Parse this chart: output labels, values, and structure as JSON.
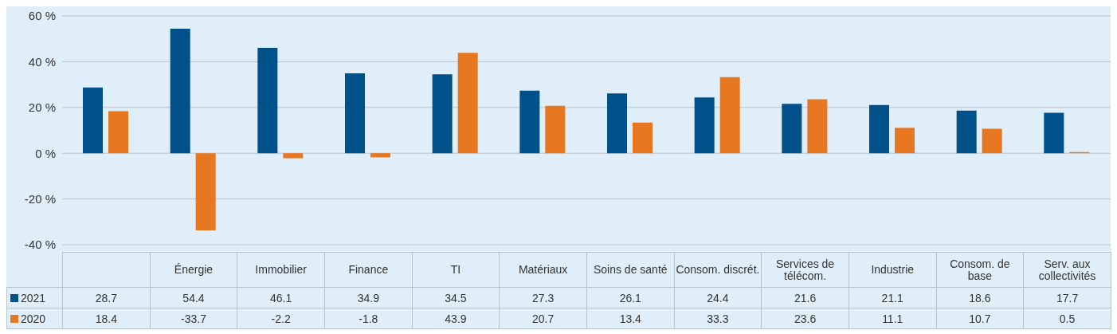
{
  "chart_data": {
    "type": "bar",
    "categories": [
      null,
      "Énergie",
      "Immobilier",
      "Finance",
      "TI",
      "Matériaux",
      "Soins de santé",
      "Consom. discrét.",
      "Services de télécom.",
      "Industrie",
      "Consom. de base",
      "Serv. aux collectivités"
    ],
    "series": [
      {
        "name": "2021",
        "color": "#00508a",
        "values": [
          28.7,
          54.4,
          46.1,
          34.9,
          34.5,
          27.3,
          26.1,
          24.4,
          21.6,
          21.1,
          18.6,
          17.7
        ]
      },
      {
        "name": "2020",
        "color": "#e87722",
        "values": [
          18.4,
          -33.7,
          -2.2,
          -1.8,
          43.9,
          20.7,
          13.4,
          33.3,
          23.6,
          11.1,
          10.7,
          0.5
        ]
      }
    ],
    "ylim": [
      -40,
      60
    ],
    "yticks": [
      {
        "value": -40,
        "label": "-40 %"
      },
      {
        "value": -20,
        "label": "-20 %"
      },
      {
        "value": 0,
        "label": "0 %"
      },
      {
        "value": 20,
        "label": "20 %"
      },
      {
        "value": 40,
        "label": "40 %"
      },
      {
        "value": 60,
        "label": "60 %"
      }
    ],
    "grid": "y",
    "legend": "bottom",
    "data_labels": true
  }
}
